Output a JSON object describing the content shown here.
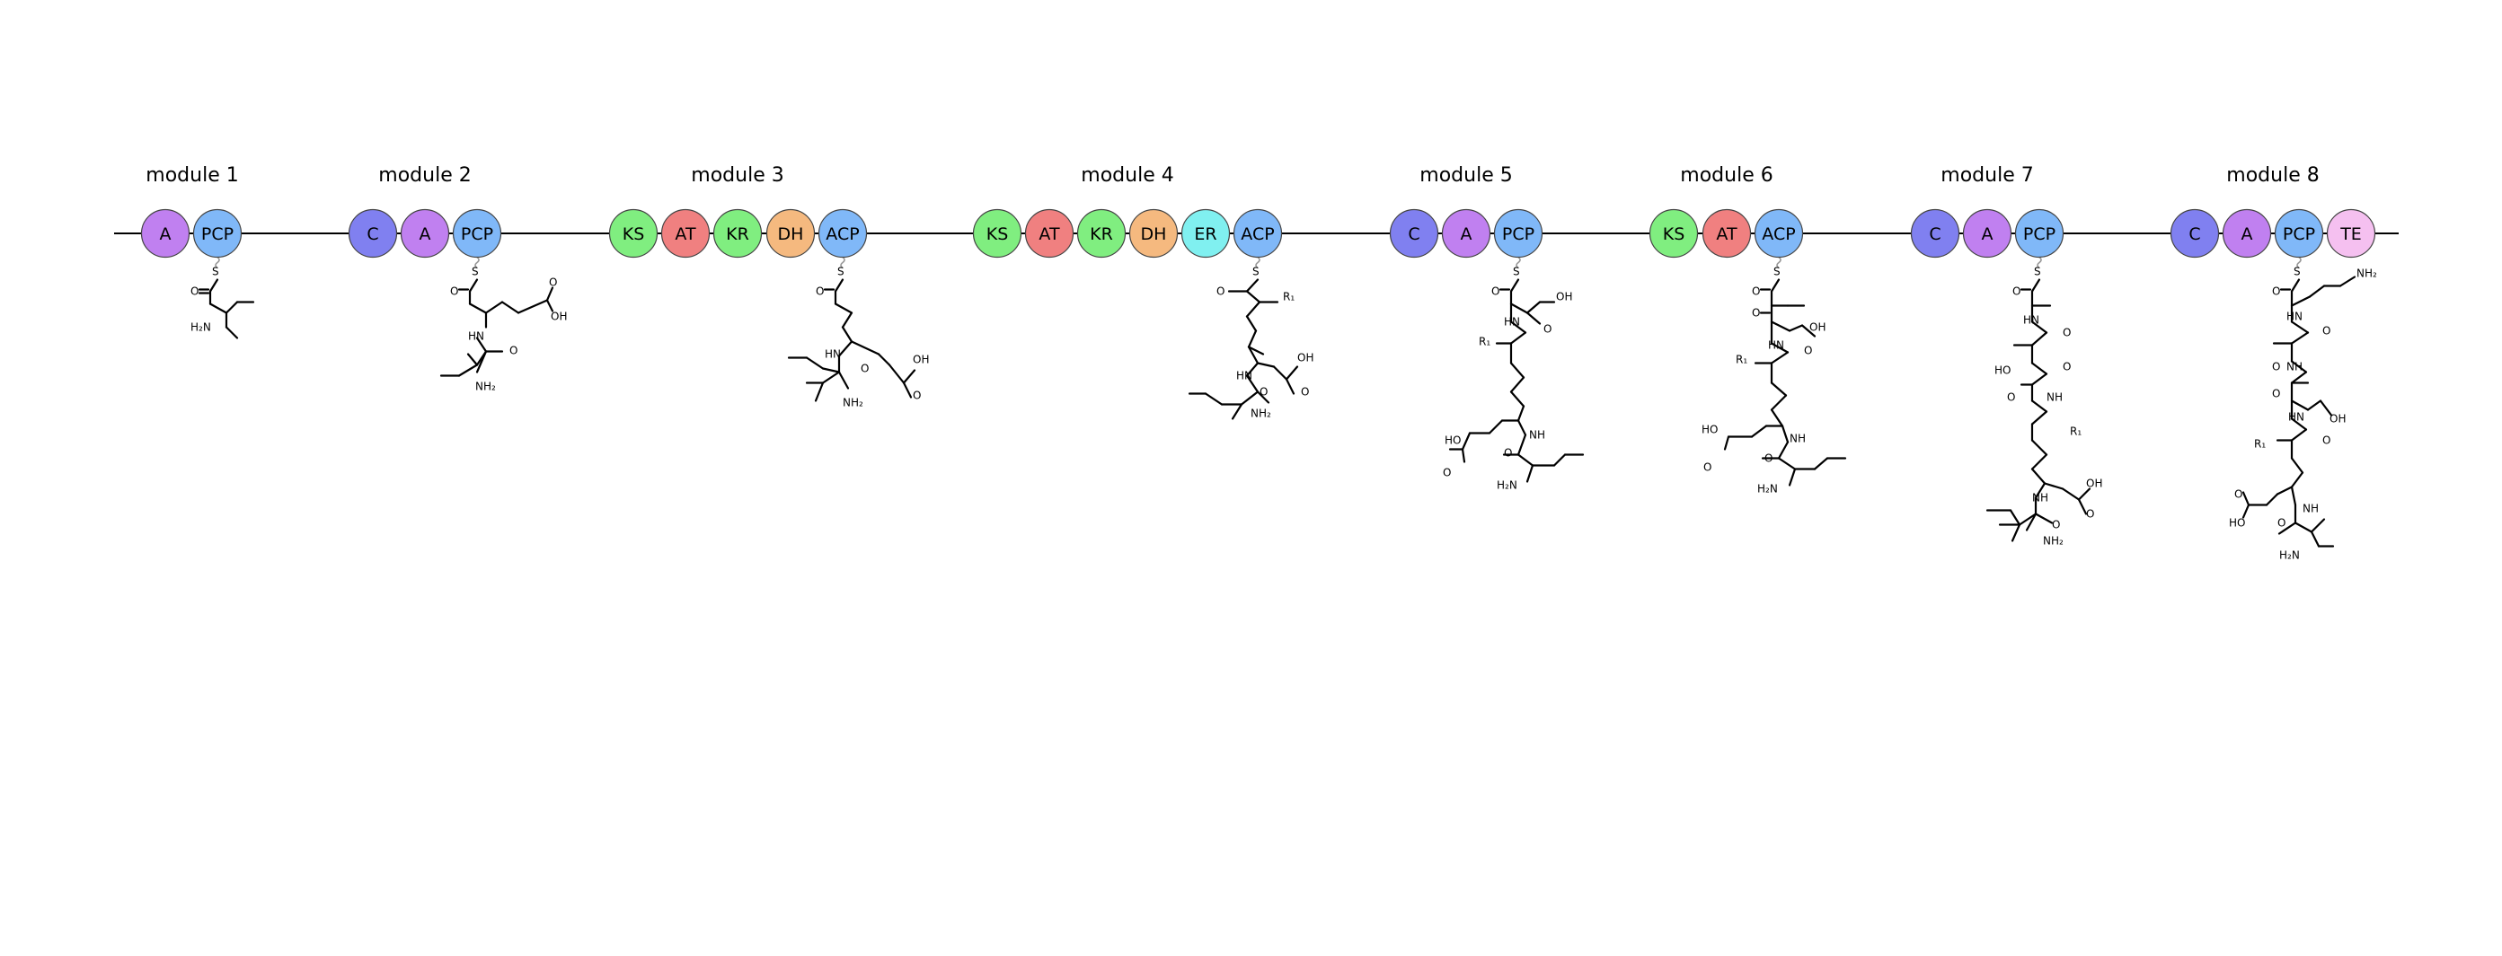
{
  "colors": {
    "A": "#c080f0",
    "PCP": "#80b8f8",
    "C": "#8080f0",
    "KS": "#80ee80",
    "AT": "#f08080",
    "KR": "#80ee80",
    "DH": "#f5b97f",
    "ER": "#80f0f0",
    "ACP": "#80b8f8",
    "TE": "#f5c0f0"
  },
  "modules": [
    {
      "label": "module 1",
      "domains": [
        "A",
        "PCP"
      ],
      "product": [
        "O",
        "S",
        "H₂N"
      ]
    },
    {
      "label": "module 2",
      "domains": [
        "C",
        "A",
        "PCP"
      ],
      "product": [
        "O",
        "S",
        "O",
        "OH",
        "HN",
        "O",
        "NH₂"
      ]
    },
    {
      "label": "module 3",
      "domains": [
        "KS",
        "AT",
        "KR",
        "DH",
        "ACP"
      ],
      "product": [
        "O",
        "S",
        "OH",
        "HN",
        "O",
        "O",
        "NH₂"
      ]
    },
    {
      "label": "module 4",
      "domains": [
        "KS",
        "AT",
        "KR",
        "DH",
        "ER",
        "ACP"
      ],
      "product": [
        "O",
        "S",
        "R₁",
        "HN",
        "OH",
        "O",
        "O",
        "NH₂"
      ]
    },
    {
      "label": "module 5",
      "domains": [
        "C",
        "A",
        "PCP"
      ],
      "product": [
        "O",
        "S",
        "OH",
        "HN",
        "O",
        "R₁",
        "HO",
        "O",
        "NH",
        "O",
        "H₂N"
      ]
    },
    {
      "label": "module 6",
      "domains": [
        "KS",
        "AT",
        "ACP"
      ],
      "product": [
        "O",
        "S",
        "O",
        "OH",
        "HN",
        "O",
        "R₁",
        "HO",
        "O",
        "NH",
        "O",
        "H₂N"
      ]
    },
    {
      "label": "module 7",
      "domains": [
        "C",
        "A",
        "PCP"
      ],
      "product": [
        "O",
        "S",
        "HN",
        "O",
        "O",
        "HO",
        "NH",
        "O",
        "R₁",
        "NH",
        "OH",
        "O",
        "O",
        "NH₂"
      ]
    },
    {
      "label": "module 8",
      "domains": [
        "C",
        "A",
        "PCP",
        "TE"
      ],
      "product": [
        "O",
        "S",
        "NH₂",
        "HN",
        "O",
        "NH",
        "O",
        "O",
        "HN",
        "OH",
        "O",
        "R₁",
        "O",
        "HO",
        "NH",
        "O",
        "H₂N"
      ]
    }
  ]
}
